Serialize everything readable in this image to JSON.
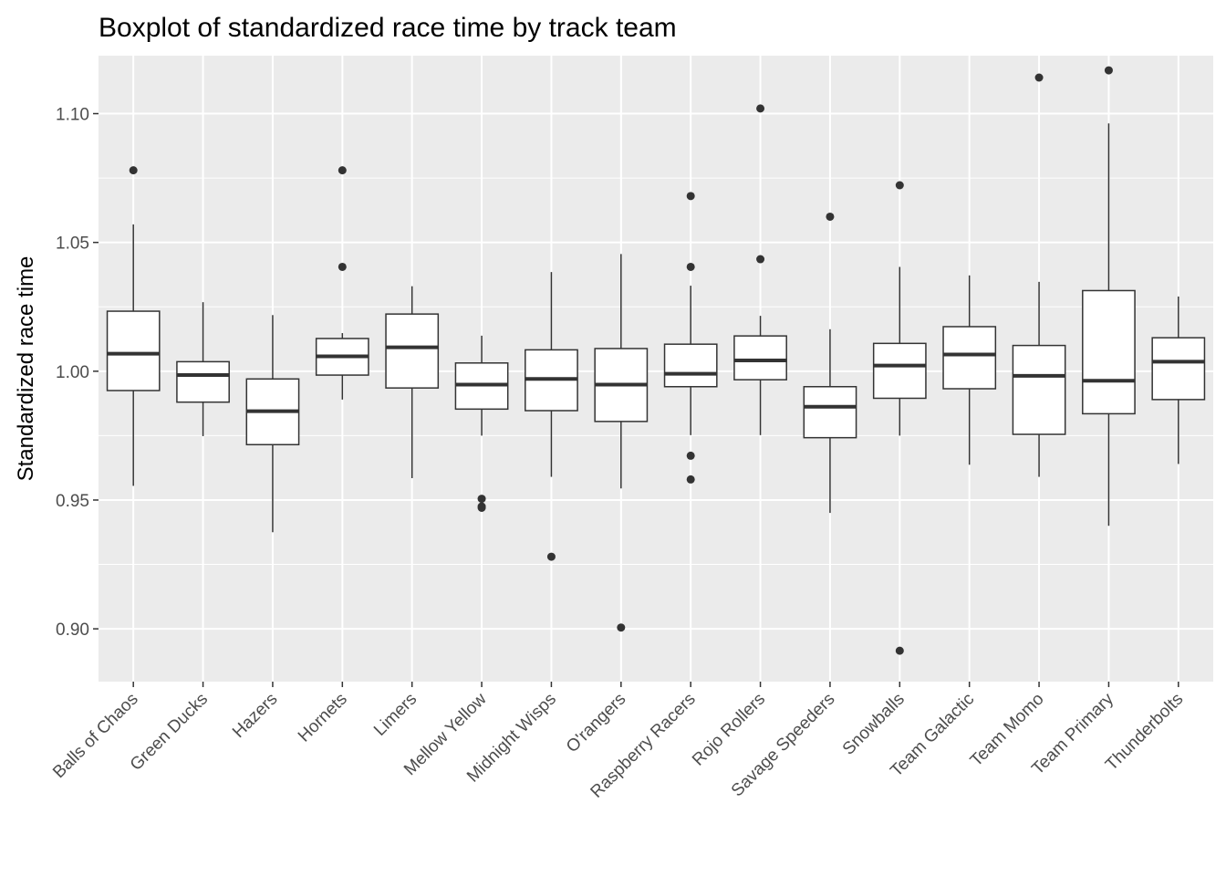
{
  "chart_data": {
    "type": "boxplot",
    "title": "Boxplot of standardized race time by track team",
    "xlabel": "",
    "ylabel": "Standardized race time",
    "ylim": [
      0.8795,
      1.1225
    ],
    "yticks": [
      0.9,
      0.95,
      1.0,
      1.05,
      1.1
    ],
    "ytick_labels": [
      "0.90",
      "0.95",
      "1.00",
      "1.05",
      "1.10"
    ],
    "grid": true,
    "background": "#ebebeb",
    "box_fill": "#ffffff",
    "line_color": "#333333",
    "categories": [
      "Balls of Chaos",
      "Green Ducks",
      "Hazers",
      "Hornets",
      "Limers",
      "Mellow Yellow",
      "Midnight Wisps",
      "O'rangers",
      "Raspberry Racers",
      "Rojo Rollers",
      "Savage Speeders",
      "Snowballs",
      "Team Galactic",
      "Team Momo",
      "Team Primary",
      "Thunderbolts"
    ],
    "boxes": [
      {
        "whisker_low": 0.9555,
        "q1": 0.9925,
        "median": 1.0068,
        "q3": 1.0233,
        "whisker_high": 1.057,
        "outliers": [
          1.078
        ]
      },
      {
        "whisker_low": 0.9748,
        "q1": 0.988,
        "median": 0.9985,
        "q3": 1.0037,
        "whisker_high": 1.0268,
        "outliers": []
      },
      {
        "whisker_low": 0.9375,
        "q1": 0.9715,
        "median": 0.9845,
        "q3": 0.997,
        "whisker_high": 1.0218,
        "outliers": []
      },
      {
        "whisker_low": 0.989,
        "q1": 0.9985,
        "median": 1.0058,
        "q3": 1.0127,
        "whisker_high": 1.0148,
        "outliers": [
          1.0405,
          1.078
        ]
      },
      {
        "whisker_low": 0.9585,
        "q1": 0.9935,
        "median": 1.0093,
        "q3": 1.0222,
        "whisker_high": 1.033,
        "outliers": []
      },
      {
        "whisker_low": 0.975,
        "q1": 0.9853,
        "median": 0.9948,
        "q3": 1.0032,
        "whisker_high": 1.0138,
        "outliers": [
          0.9505,
          0.9475,
          0.947
        ]
      },
      {
        "whisker_low": 0.959,
        "q1": 0.9847,
        "median": 0.997,
        "q3": 1.0083,
        "whisker_high": 1.0385,
        "outliers": [
          0.928
        ]
      },
      {
        "whisker_low": 0.9545,
        "q1": 0.9805,
        "median": 0.9948,
        "q3": 1.0088,
        "whisker_high": 1.0455,
        "outliers": [
          0.9005
        ]
      },
      {
        "whisker_low": 0.9752,
        "q1": 0.994,
        "median": 0.999,
        "q3": 1.0105,
        "whisker_high": 1.0332,
        "outliers": [
          0.958,
          0.9672,
          1.0405,
          1.068
        ]
      },
      {
        "whisker_low": 0.9752,
        "q1": 0.9967,
        "median": 1.0042,
        "q3": 1.0137,
        "whisker_high": 1.0215,
        "outliers": [
          1.0435,
          1.102
        ]
      },
      {
        "whisker_low": 0.945,
        "q1": 0.9742,
        "median": 0.9862,
        "q3": 0.994,
        "whisker_high": 1.0163,
        "outliers": [
          1.06
        ]
      },
      {
        "whisker_low": 0.975,
        "q1": 0.9895,
        "median": 1.0022,
        "q3": 1.0108,
        "whisker_high": 1.0405,
        "outliers": [
          0.8915,
          1.0722
        ]
      },
      {
        "whisker_low": 0.9637,
        "q1": 0.9932,
        "median": 1.0065,
        "q3": 1.0173,
        "whisker_high": 1.0372,
        "outliers": []
      },
      {
        "whisker_low": 0.959,
        "q1": 0.9755,
        "median": 0.9982,
        "q3": 1.01,
        "whisker_high": 1.0347,
        "outliers": [
          1.114
        ]
      },
      {
        "whisker_low": 0.94,
        "q1": 0.9835,
        "median": 0.9963,
        "q3": 1.0313,
        "whisker_high": 1.0962,
        "outliers": [
          1.1168
        ]
      },
      {
        "whisker_low": 0.964,
        "q1": 0.989,
        "median": 1.0037,
        "q3": 1.013,
        "whisker_high": 1.029,
        "outliers": []
      }
    ]
  }
}
